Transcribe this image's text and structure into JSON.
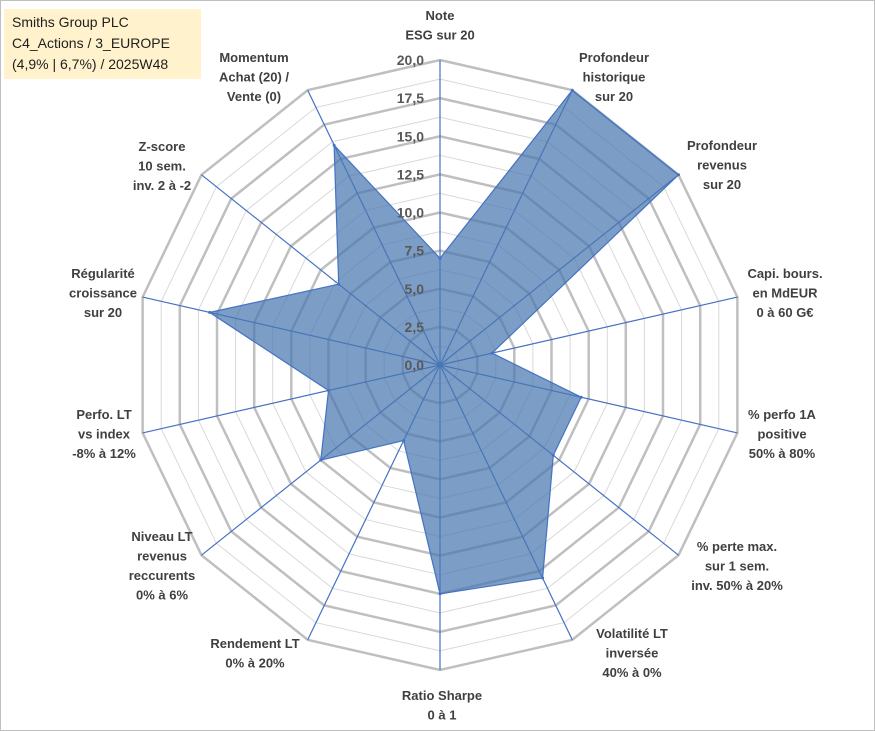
{
  "title": {
    "line1": "Smiths Group PLC",
    "line2": "C4_Actions / 3_EUROPE",
    "line3": "(4,9% | 6,7%) / 2025W48"
  },
  "colors": {
    "series_fill": "#4a77b0",
    "series_stroke": "#4472c4",
    "grid": "#d9d9d9",
    "outer_grid": "#bfbfbf",
    "spoke": "#4472c4",
    "title_bg": "#fff2cc"
  },
  "chart_data": {
    "type": "radar",
    "rmin": 0,
    "rmax": 20,
    "grid_step": 1.25,
    "tick_labels": [
      "0,0",
      "2,5",
      "5,0",
      "7,5",
      "10,0",
      "12,5",
      "15,0",
      "17,5",
      "20,0"
    ],
    "tick_values": [
      0,
      2.5,
      5,
      7.5,
      10,
      12.5,
      15,
      17.5,
      20
    ],
    "axes": [
      {
        "label": [
          "Note",
          "ESG sur 20"
        ],
        "value": 7
      },
      {
        "label": [
          "Profondeur",
          "historique",
          "sur 20"
        ],
        "value": 20
      },
      {
        "label": [
          "Profondeur",
          "revenus",
          "sur 20"
        ],
        "value": 20
      },
      {
        "label": [
          "Capi. bours.",
          "en MdEUR",
          "0 à 60 G€"
        ],
        "value": 3.5
      },
      {
        "label": [
          "% perfo 1A",
          "positive",
          "50% à 80%"
        ],
        "value": 9.5
      },
      {
        "label": [
          "% perte max.",
          "sur 1 sem.",
          "inv. 50% à 20%"
        ],
        "value": 9.5
      },
      {
        "label": [
          "Volatilité LT",
          "inversée",
          "40% à 0%"
        ],
        "value": 15.5
      },
      {
        "label": [
          "Ratio Sharpe",
          "0 à 1"
        ],
        "value": 15
      },
      {
        "label": [
          "Rendement LT",
          "0% à 20%"
        ],
        "value": 5.5
      },
      {
        "label": [
          "Niveau LT",
          "revenus",
          "reccurents",
          "0% à 6%"
        ],
        "value": 10
      },
      {
        "label": [
          "Perfo. LT",
          "vs index",
          "-8% à 12%"
        ],
        "value": 7.5
      },
      {
        "label": [
          "Régularité",
          "croissance",
          "sur 20"
        ],
        "value": 15.5
      },
      {
        "label": [
          "Z-score",
          "10 sem.",
          "inv. 2 à -2"
        ],
        "value": 8.5
      },
      {
        "label": [
          "Momentum",
          "Achat (20) /",
          "Vente (0)"
        ],
        "value": 16
      }
    ]
  }
}
